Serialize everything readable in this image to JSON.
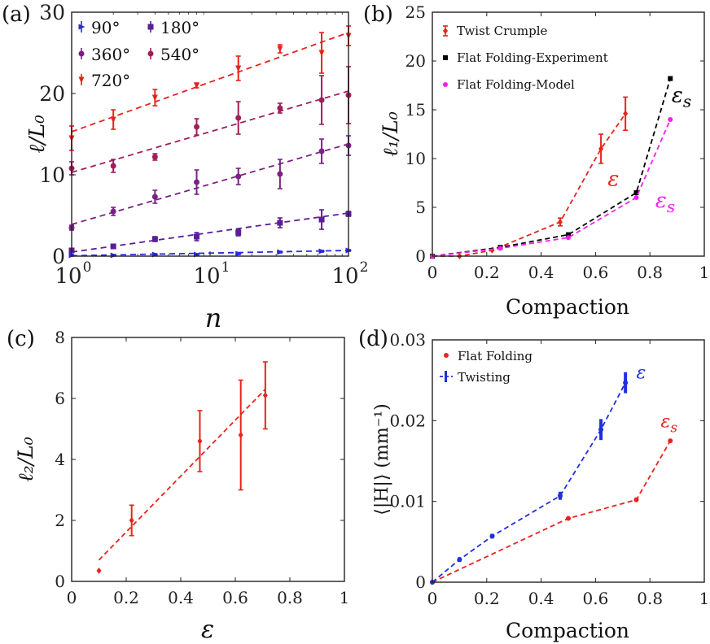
{
  "chart_data": [
    {
      "id": "a",
      "panel_label": "(a)",
      "type": "scatter",
      "xscale": "log",
      "xlim": [
        1,
        100
      ],
      "ylim": [
        0,
        30
      ],
      "xticks": [
        {
          "v": 1,
          "base": "10",
          "exp": "0"
        },
        {
          "v": 10,
          "base": "10",
          "exp": "1"
        },
        {
          "v": 100,
          "base": "10",
          "exp": "2"
        }
      ],
      "yticks": [
        0,
        10,
        20,
        30
      ],
      "xlabel": "n",
      "ylabel": "ℓ/L₀",
      "legend_position": "top-left",
      "series": [
        {
          "name": "90°",
          "color": "#2a2ad8",
          "marker": "triangle-right",
          "x": [
            1,
            2,
            4,
            8,
            16,
            32,
            64,
            100
          ],
          "y": [
            0.1,
            0.1,
            0.2,
            0.2,
            0.3,
            0.5,
            0.6,
            0.7
          ],
          "err": [
            0.1,
            0.1,
            0.1,
            0.1,
            0.1,
            0.1,
            0.1,
            0.1
          ],
          "fit": [
            0.05,
            0.7
          ]
        },
        {
          "name": "180°",
          "color": "#5a1e96",
          "marker": "square",
          "x": [
            1,
            2,
            4,
            8,
            16,
            32,
            64,
            100
          ],
          "y": [
            0.7,
            1.2,
            2.1,
            2.4,
            2.9,
            4.1,
            4.5,
            5.2
          ],
          "err": [
            0.2,
            0.2,
            0.3,
            0.5,
            0.4,
            0.6,
            1.2,
            0.3
          ],
          "fit": [
            0.5,
            5.3
          ]
        },
        {
          "name": "360°",
          "color": "#7a2283",
          "marker": "circle",
          "x": [
            1,
            2,
            4,
            8,
            16,
            32,
            64,
            100
          ],
          "y": [
            3.5,
            5.5,
            7.3,
            9.1,
            9.8,
            10.1,
            12.9,
            13.6
          ],
          "err": [
            0.3,
            0.5,
            0.8,
            1.5,
            1.0,
            1.8,
            1.5,
            1.2
          ],
          "fit": [
            3.9,
            13.8
          ]
        },
        {
          "name": "540°",
          "color": "#a01e5a",
          "marker": "circle",
          "x": [
            1,
            2,
            4,
            8,
            16,
            32,
            64,
            100
          ],
          "y": [
            10.8,
            11.1,
            12.2,
            15.9,
            17.0,
            18.2,
            19.2,
            19.8
          ],
          "err": [
            0.8,
            0.8,
            0.4,
            1.0,
            2.0,
            0.6,
            3.0,
            3.5
          ],
          "fit": [
            10.3,
            20.3
          ]
        },
        {
          "name": "720°",
          "color": "#e8231d",
          "marker": "triangle-down",
          "x": [
            1,
            2,
            4,
            8,
            16,
            32,
            64,
            100
          ],
          "y": [
            14.5,
            16.8,
            19.5,
            21.0,
            23.1,
            25.5,
            25.0,
            27.1
          ],
          "err": [
            1.5,
            1.2,
            1.0,
            0.3,
            1.5,
            0.5,
            2.5,
            1.2
          ],
          "fit": [
            15.3,
            27.5
          ]
        }
      ]
    },
    {
      "id": "b",
      "panel_label": "(b)",
      "type": "line",
      "xlim": [
        0,
        1
      ],
      "ylim": [
        0,
        25
      ],
      "xticks": [
        0,
        0.2,
        0.4,
        0.6,
        0.8,
        1
      ],
      "yticks": [
        0,
        5,
        10,
        15,
        20,
        25
      ],
      "xlabel": "Compaction",
      "ylabel": "ℓ₁/L₀",
      "legend_position": "top-left",
      "series": [
        {
          "name": "Twist Crumple",
          "color": "#e8231d",
          "marker": "diamond",
          "x": [
            0,
            0.1,
            0.22,
            0.47,
            0.62,
            0.71
          ],
          "y": [
            0,
            0,
            0.6,
            3.5,
            11.0,
            14.6
          ],
          "err": [
            0,
            0,
            0,
            0.4,
            1.5,
            1.7
          ],
          "dashed": true
        },
        {
          "name": "Flat Folding-Experiment",
          "color": "#000000",
          "marker": "square",
          "x": [
            0,
            0.25,
            0.5,
            0.75,
            0.875
          ],
          "y": [
            0,
            0.9,
            2.2,
            6.5,
            18.2
          ],
          "err": [
            0,
            0,
            0,
            0,
            0
          ],
          "dashed": true
        },
        {
          "name": "Flat Folding-Model",
          "color": "#ee22ee",
          "marker": "circle",
          "x": [
            0,
            0.25,
            0.5,
            0.75,
            0.875
          ],
          "y": [
            0,
            0.8,
            1.9,
            6.0,
            14.0
          ],
          "err": [
            0,
            0,
            0,
            0,
            0
          ],
          "dashed": true
        }
      ],
      "annotations": [
        {
          "text": "ε",
          "sub": "",
          "color": "#e8231d",
          "x": 0.645,
          "y": 7.2
        },
        {
          "text": "ε",
          "sub": "s",
          "color": "#000000",
          "x": 0.88,
          "y": 15.8
        },
        {
          "text": "ε",
          "sub": "s",
          "color": "#ee22ee",
          "x": 0.82,
          "y": 5.0
        }
      ]
    },
    {
      "id": "c",
      "panel_label": "(c)",
      "type": "scatter",
      "xlim": [
        0,
        1
      ],
      "ylim": [
        0,
        8
      ],
      "xticks": [
        0,
        0.2,
        0.4,
        0.6,
        0.8,
        1
      ],
      "yticks": [
        0,
        2,
        4,
        6,
        8
      ],
      "xlabel": "ε",
      "ylabel": "ℓ₂/L₀",
      "series": [
        {
          "name": "",
          "color": "#e8231d",
          "marker": "diamond",
          "x": [
            0.1,
            0.22,
            0.47,
            0.62,
            0.71
          ],
          "y": [
            0.35,
            2.0,
            4.6,
            4.8,
            6.1
          ],
          "err": [
            0,
            0.5,
            1.0,
            1.8,
            1.1
          ],
          "fit": {
            "x": [
              0.1,
              0.71
            ],
            "y": [
              0.7,
              6.3
            ]
          }
        }
      ]
    },
    {
      "id": "d",
      "panel_label": "(d)",
      "type": "line",
      "xlim": [
        0,
        1
      ],
      "ylim": [
        0,
        0.03
      ],
      "xticks": [
        0,
        0.2,
        0.4,
        0.6,
        0.8,
        1
      ],
      "yticks": [
        0,
        0.01,
        0.02,
        0.03
      ],
      "xlabel": "Compaction",
      "ylabel": "⟨|H|⟩ (mm⁻¹)",
      "legend_position": "top-left",
      "series": [
        {
          "name": "Flat Folding",
          "color": "#e8231d",
          "marker": "circle",
          "x": [
            0,
            0.5,
            0.75,
            0.875
          ],
          "y": [
            0,
            0.0079,
            0.0102,
            0.0175
          ],
          "err": [
            0,
            0,
            0,
            0
          ],
          "dashed": true
        },
        {
          "name": "Twisting",
          "color": "#1f2fe0",
          "marker": "bar",
          "x": [
            0,
            0.1,
            0.22,
            0.47,
            0.62,
            0.71
          ],
          "y": [
            0,
            0.0028,
            0.0057,
            0.0107,
            0.0189,
            0.0247
          ],
          "err": [
            0,
            0.0003,
            0.0003,
            0.0005,
            0.0013,
            0.0013
          ],
          "dashed": true
        }
      ],
      "annotations": [
        {
          "text": "ε",
          "sub": "",
          "color": "#1f2fe0",
          "x": 0.75,
          "y": 0.0252
        },
        {
          "text": "ε",
          "sub": "s",
          "color": "#e8231d",
          "x": 0.84,
          "y": 0.0192
        }
      ]
    }
  ]
}
